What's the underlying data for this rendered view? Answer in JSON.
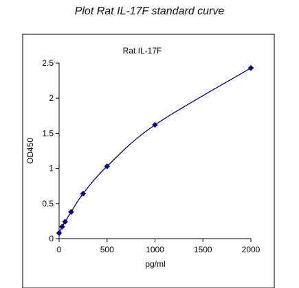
{
  "page": {
    "heading": "Plot Rat IL-17F standard curve"
  },
  "chart_data": {
    "type": "scatter",
    "title": "Rat  IL-17F",
    "xlabel": "pg/ml",
    "ylabel": "OD450",
    "xlim": [
      0,
      2000
    ],
    "ylim": [
      0,
      2.5
    ],
    "x_ticks": [
      0,
      500,
      1000,
      1500,
      2000
    ],
    "y_ticks": [
      0,
      0.5,
      1,
      1.5,
      2,
      2.5
    ],
    "x_tick_labels": [
      "0",
      "500",
      "1000",
      "1500",
      "2000"
    ],
    "y_tick_labels": [
      "0",
      "0.5",
      "1",
      "1.5",
      "2",
      "2.5"
    ],
    "grid": false,
    "legend": false,
    "series": [
      {
        "x": [
          0,
          31.25,
          62.5,
          125,
          250,
          500,
          1000,
          2000
        ],
        "y": [
          0.08,
          0.17,
          0.24,
          0.38,
          0.64,
          1.03,
          1.62,
          2.43
        ],
        "marker": "diamond",
        "color": "#000080",
        "curve": "smooth"
      }
    ]
  }
}
